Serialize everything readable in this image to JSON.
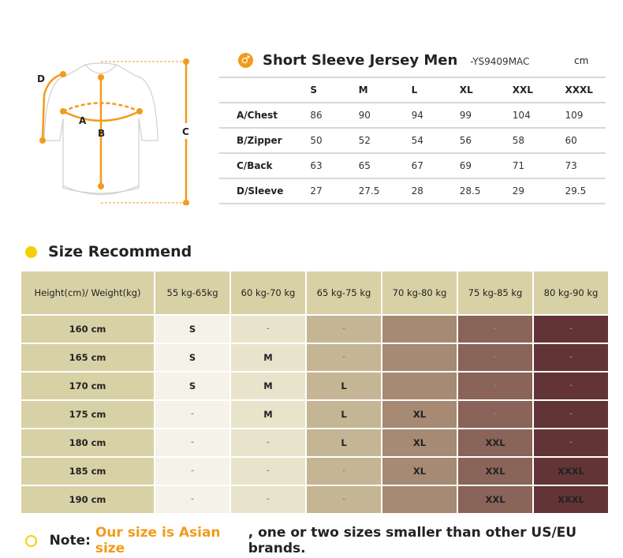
{
  "diagram": {
    "labels": [
      "A",
      "B",
      "C",
      "D"
    ]
  },
  "measure": {
    "title": "Short Sleeve Jersey Men",
    "code": "-YS9409MAC",
    "unit": "cm",
    "gender_icon": "male-symbol-icon",
    "sizes": [
      "S",
      "M",
      "L",
      "XL",
      "XXL",
      "XXXL"
    ],
    "rows": [
      {
        "label": "A/Chest",
        "values": [
          "86",
          "90",
          "94",
          "99",
          "104",
          "109"
        ]
      },
      {
        "label": "B/Zipper",
        "values": [
          "50",
          "52",
          "54",
          "56",
          "58",
          "60"
        ]
      },
      {
        "label": "C/Back",
        "values": [
          "63",
          "65",
          "67",
          "69",
          "71",
          "73"
        ]
      },
      {
        "label": "D/Sleeve",
        "values": [
          "27",
          "27.5",
          "28",
          "28.5",
          "29",
          "29.5"
        ]
      }
    ]
  },
  "recommend": {
    "title": "Size Recommend",
    "corner": "Height(cm)/ Weight(kg)",
    "weights": [
      "55 kg-65kg",
      "60 kg-70 kg",
      "65 kg-75 kg",
      "70 kg-80 kg",
      "75 kg-85 kg",
      "80 kg-90 kg"
    ],
    "column_colors": [
      "#f4f2e9",
      "#e8e4cc",
      "#c4b594",
      "#a68a73",
      "#8a6458",
      "#633436"
    ],
    "rows": [
      {
        "height": "160 cm",
        "sizes": [
          "S",
          "-",
          "-",
          "-",
          "-",
          "-"
        ]
      },
      {
        "height": "165 cm",
        "sizes": [
          "S",
          "M",
          "-",
          "-",
          "-",
          "-"
        ]
      },
      {
        "height": "170 cm",
        "sizes": [
          "S",
          "M",
          "L",
          "-",
          "-",
          "-"
        ]
      },
      {
        "height": "175 cm",
        "sizes": [
          "-",
          "M",
          "L",
          "XL",
          "-",
          "-"
        ]
      },
      {
        "height": "180 cm",
        "sizes": [
          "-",
          "-",
          "L",
          "XL",
          "XXL",
          "-"
        ]
      },
      {
        "height": "185 cm",
        "sizes": [
          "-",
          "-",
          "-",
          "XL",
          "XXL",
          "XXXL"
        ]
      },
      {
        "height": "190 cm",
        "sizes": [
          "-",
          "-",
          "-",
          "-",
          "XXL",
          "XXXL"
        ]
      }
    ]
  },
  "note": {
    "prefix": "Note: ",
    "highlight": "Our size is Asian size",
    "rest": ", one or two sizes smaller than other US/EU brands."
  },
  "colors": {
    "accent": "#f39a1b",
    "bullet": "#f5d000",
    "header": "#d8d1a6"
  }
}
